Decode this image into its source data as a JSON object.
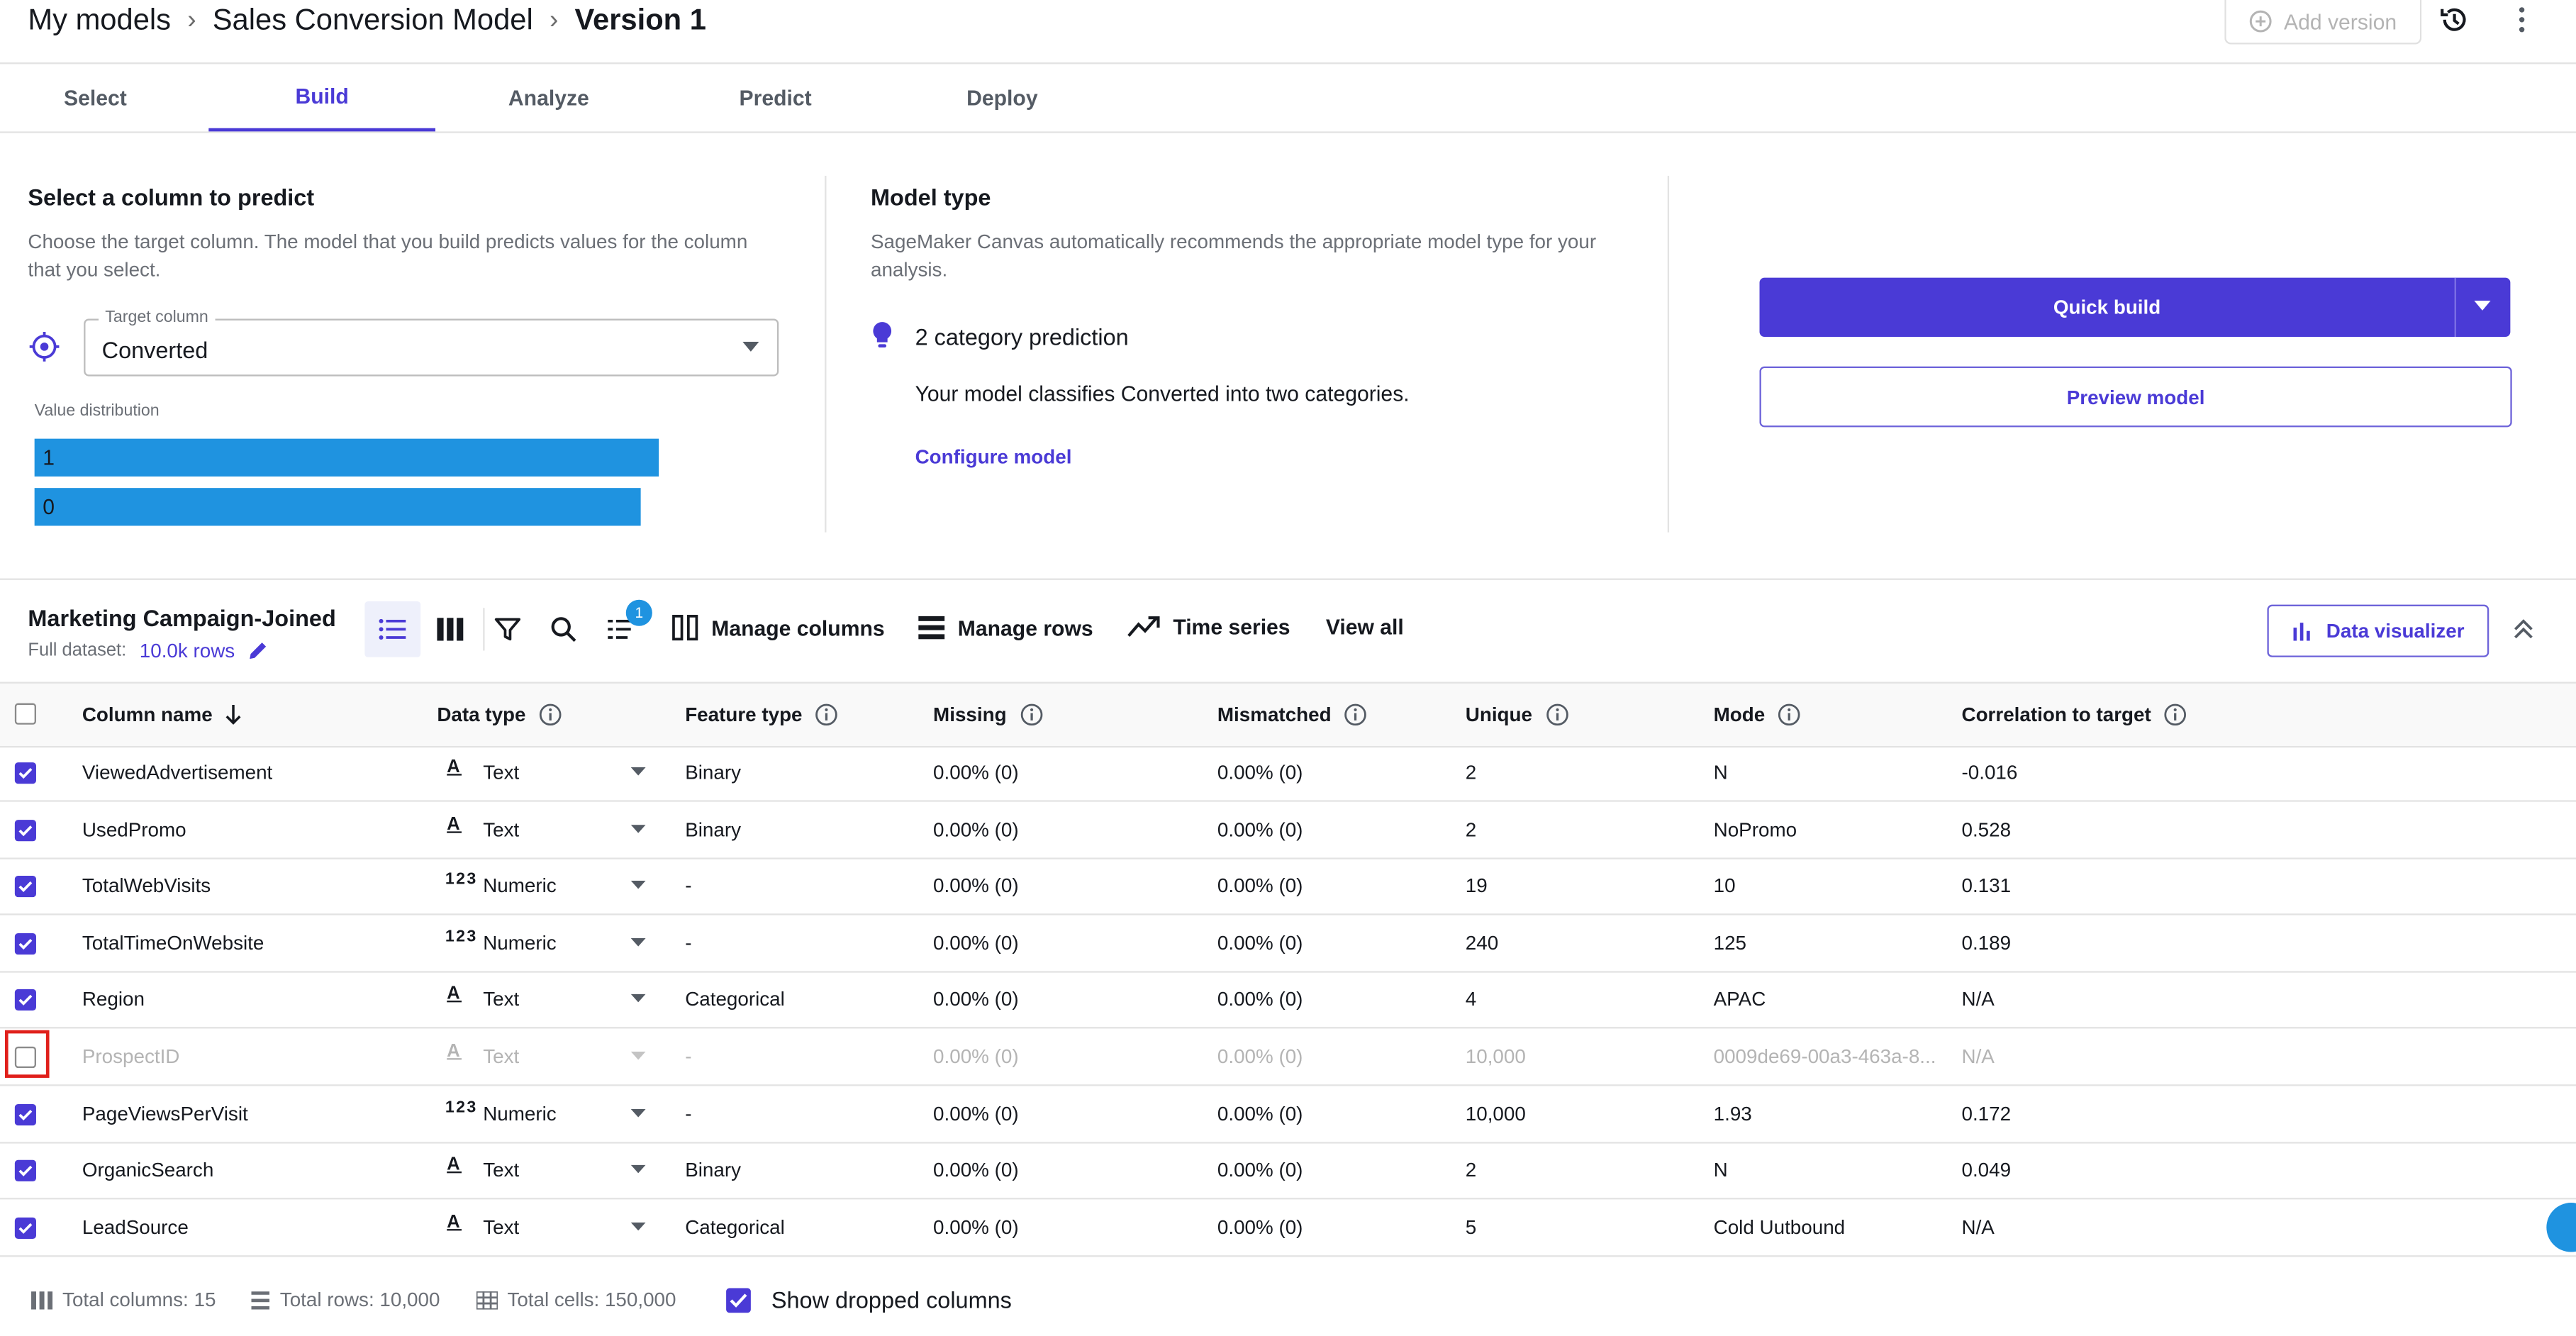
{
  "header": {
    "breadcrumbs": [
      "My models",
      "Sales Conversion Model",
      "Version 1"
    ],
    "add_version": "Add version"
  },
  "tabs": [
    {
      "label": "Select",
      "active": false
    },
    {
      "label": "Build",
      "active": true
    },
    {
      "label": "Analyze",
      "active": false
    },
    {
      "label": "Predict",
      "active": false
    },
    {
      "label": "Deploy",
      "active": false
    }
  ],
  "target": {
    "title": "Select a column to predict",
    "description_line1": "Choose the target column. The model that you build predicts values for the column",
    "description_line2": "that you select.",
    "field_label": "Target column",
    "field_value": "Converted",
    "value_distribution_label": "Value distribution",
    "distribution": [
      {
        "label": "1",
        "fraction": 1.0
      },
      {
        "label": "0",
        "fraction": 0.97
      }
    ]
  },
  "model_type": {
    "title": "Model type",
    "description_line1": "SageMaker Canvas automatically recommends the appropriate model type for your",
    "description_line2": "analysis.",
    "prediction": "2 category prediction",
    "explanation": "Your model classifies Converted into two categories.",
    "configure_link": "Configure model"
  },
  "actions": {
    "quick_build": "Quick build",
    "preview_model": "Preview model"
  },
  "dataset": {
    "name": "Marketing Campaign-Joined",
    "full_dataset_label": "Full dataset:",
    "rows_link": "10.0k rows",
    "sort_badge": "1",
    "manage_columns": "Manage columns",
    "manage_rows": "Manage rows",
    "time_series": "Time series",
    "view_all": "View all",
    "data_visualizer": "Data visualizer"
  },
  "table": {
    "headers": {
      "column_name": "Column name",
      "data_type": "Data type",
      "feature_type": "Feature type",
      "missing": "Missing",
      "mismatched": "Mismatched",
      "unique": "Unique",
      "mode": "Mode",
      "correlation": "Correlation to target"
    },
    "rows": [
      {
        "name": "ViewedAdvertisement",
        "type_icon": "A",
        "type": "Text",
        "feature": "Binary",
        "missing": "0.00% (0)",
        "mismatched": "0.00% (0)",
        "unique": "2",
        "mode": "N",
        "corr": "-0.016",
        "checked": true
      },
      {
        "name": "UsedPromo",
        "type_icon": "A",
        "type": "Text",
        "feature": "Binary",
        "missing": "0.00% (0)",
        "mismatched": "0.00% (0)",
        "unique": "2",
        "mode": "NoPromo",
        "corr": "0.528",
        "checked": true
      },
      {
        "name": "TotalWebVisits",
        "type_icon": "123",
        "type": "Numeric",
        "feature": "-",
        "missing": "0.00% (0)",
        "mismatched": "0.00% (0)",
        "unique": "19",
        "mode": "10",
        "corr": "0.131",
        "checked": true
      },
      {
        "name": "TotalTimeOnWebsite",
        "type_icon": "123",
        "type": "Numeric",
        "feature": "-",
        "missing": "0.00% (0)",
        "mismatched": "0.00% (0)",
        "unique": "240",
        "mode": "125",
        "corr": "0.189",
        "checked": true
      },
      {
        "name": "Region",
        "type_icon": "A",
        "type": "Text",
        "feature": "Categorical",
        "missing": "0.00% (0)",
        "mismatched": "0.00% (0)",
        "unique": "4",
        "mode": "APAC",
        "corr": "N/A",
        "checked": true
      },
      {
        "name": "ProspectID",
        "type_icon": "A",
        "type": "Text",
        "feature": "-",
        "missing": "0.00% (0)",
        "mismatched": "0.00% (0)",
        "unique": "10,000",
        "mode": "0009de69-00a3-463a-8...",
        "corr": "N/A",
        "checked": false
      },
      {
        "name": "PageViewsPerVisit",
        "type_icon": "123",
        "type": "Numeric",
        "feature": "-",
        "missing": "0.00% (0)",
        "mismatched": "0.00% (0)",
        "unique": "10,000",
        "mode": "1.93",
        "corr": "0.172",
        "checked": true
      },
      {
        "name": "OrganicSearch",
        "type_icon": "A",
        "type": "Text",
        "feature": "Binary",
        "missing": "0.00% (0)",
        "mismatched": "0.00% (0)",
        "unique": "2",
        "mode": "N",
        "corr": "0.049",
        "checked": true
      },
      {
        "name": "LeadSource",
        "type_icon": "A",
        "type": "Text",
        "feature": "Categorical",
        "missing": "0.00% (0)",
        "mismatched": "0.00% (0)",
        "unique": "5",
        "mode": "Cold Uutbound",
        "corr": "N/A",
        "checked": true
      }
    ]
  },
  "footer": {
    "total_columns": "Total columns: 15",
    "total_rows": "Total rows: 10,000",
    "total_cells": "Total cells: 150,000",
    "show_dropped": "Show dropped columns"
  },
  "colors": {
    "accent": "#4a3ad6",
    "bar": "#1f93e0",
    "highlight_box": "#e0201b"
  }
}
